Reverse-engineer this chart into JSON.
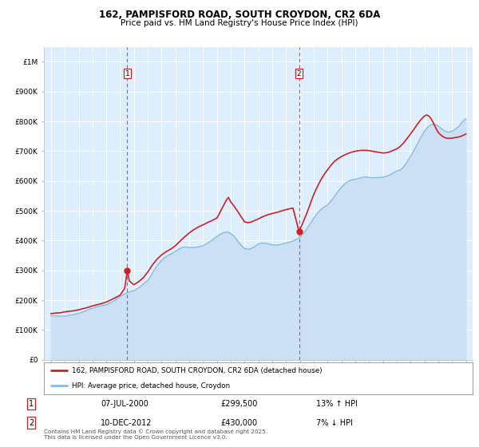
{
  "title1": "162, PAMPISFORD ROAD, SOUTH CROYDON, CR2 6DA",
  "title2": "Price paid vs. HM Land Registry's House Price Index (HPI)",
  "background_color": "#ffffff",
  "plot_bg_color": "#ddeeff",
  "hpi_fill_color": "#cce0f5",
  "hpi_line_color": "#88bbdd",
  "price_color": "#cc2222",
  "marker_color": "#cc2222",
  "vline_color": "#dd4444",
  "legend_label_price": "162, PAMPISFORD ROAD, SOUTH CROYDON, CR2 6DA (detached house)",
  "legend_label_hpi": "HPI: Average price, detached house, Croydon",
  "annotation1_date": "07-JUL-2000",
  "annotation1_price": "£299,500",
  "annotation1_pct": "13% ↑ HPI",
  "annotation1_year": 2000.52,
  "annotation1_value": 299500,
  "annotation2_date": "10-DEC-2012",
  "annotation2_price": "£430,000",
  "annotation2_pct": "7% ↓ HPI",
  "annotation2_year": 2012.94,
  "annotation2_value": 430000,
  "footer": "Contains HM Land Registry data © Crown copyright and database right 2025.\nThis data is licensed under the Open Government Licence v3.0.",
  "ylim": [
    0,
    1050000
  ],
  "xlim": [
    1994.5,
    2025.5
  ],
  "yticks": [
    0,
    100000,
    200000,
    300000,
    400000,
    500000,
    600000,
    700000,
    800000,
    900000,
    1000000
  ],
  "ytick_labels": [
    "£0",
    "£100K",
    "£200K",
    "£300K",
    "£400K",
    "£500K",
    "£600K",
    "£700K",
    "£800K",
    "£900K",
    "£1M"
  ],
  "hpi_data": [
    [
      1995,
      148000
    ],
    [
      1995.25,
      147500
    ],
    [
      1995.5,
      147000
    ],
    [
      1995.75,
      146500
    ],
    [
      1996,
      147000
    ],
    [
      1996.25,
      149000
    ],
    [
      1996.5,
      151000
    ],
    [
      1996.75,
      153000
    ],
    [
      1997,
      156000
    ],
    [
      1997.25,
      160000
    ],
    [
      1997.5,
      164000
    ],
    [
      1997.75,
      169000
    ],
    [
      1998,
      173000
    ],
    [
      1998.25,
      177000
    ],
    [
      1998.5,
      180000
    ],
    [
      1998.75,
      182000
    ],
    [
      1999,
      185000
    ],
    [
      1999.25,
      190000
    ],
    [
      1999.5,
      196000
    ],
    [
      1999.75,
      204000
    ],
    [
      2000,
      212000
    ],
    [
      2000.25,
      219000
    ],
    [
      2000.5,
      225000
    ],
    [
      2000.75,
      229000
    ],
    [
      2001,
      232000
    ],
    [
      2001.25,
      239000
    ],
    [
      2001.5,
      247000
    ],
    [
      2001.75,
      257000
    ],
    [
      2002,
      267000
    ],
    [
      2002.25,
      284000
    ],
    [
      2002.5,
      304000
    ],
    [
      2002.75,
      321000
    ],
    [
      2003,
      334000
    ],
    [
      2003.25,
      344000
    ],
    [
      2003.5,
      351000
    ],
    [
      2003.75,
      357000
    ],
    [
      2004,
      364000
    ],
    [
      2004.25,
      372000
    ],
    [
      2004.5,
      377000
    ],
    [
      2004.75,
      379000
    ],
    [
      2005,
      377000
    ],
    [
      2005.25,
      377000
    ],
    [
      2005.5,
      378000
    ],
    [
      2005.75,
      380000
    ],
    [
      2006,
      383000
    ],
    [
      2006.25,
      389000
    ],
    [
      2006.5,
      397000
    ],
    [
      2006.75,
      405000
    ],
    [
      2007,
      414000
    ],
    [
      2007.25,
      422000
    ],
    [
      2007.5,
      427000
    ],
    [
      2007.75,
      429000
    ],
    [
      2008,
      424000
    ],
    [
      2008.25,
      414000
    ],
    [
      2008.5,
      399000
    ],
    [
      2008.75,
      384000
    ],
    [
      2009,
      374000
    ],
    [
      2009.25,
      371000
    ],
    [
      2009.5,
      374000
    ],
    [
      2009.75,
      381000
    ],
    [
      2010,
      389000
    ],
    [
      2010.25,
      392000
    ],
    [
      2010.5,
      391000
    ],
    [
      2010.75,
      389000
    ],
    [
      2011,
      386000
    ],
    [
      2011.25,
      385000
    ],
    [
      2011.5,
      386000
    ],
    [
      2011.75,
      389000
    ],
    [
      2012,
      392000
    ],
    [
      2012.25,
      395000
    ],
    [
      2012.5,
      399000
    ],
    [
      2012.75,
      404000
    ],
    [
      2013,
      412000
    ],
    [
      2013.25,
      424000
    ],
    [
      2013.5,
      439000
    ],
    [
      2013.75,
      457000
    ],
    [
      2014,
      475000
    ],
    [
      2014.25,
      491000
    ],
    [
      2014.5,
      504000
    ],
    [
      2014.75,
      513000
    ],
    [
      2015,
      520000
    ],
    [
      2015.25,
      533000
    ],
    [
      2015.5,
      548000
    ],
    [
      2015.75,
      565000
    ],
    [
      2016,
      579000
    ],
    [
      2016.25,
      591000
    ],
    [
      2016.5,
      599000
    ],
    [
      2016.75,
      604000
    ],
    [
      2017,
      606000
    ],
    [
      2017.25,
      609000
    ],
    [
      2017.5,
      612000
    ],
    [
      2017.75,
      614000
    ],
    [
      2018,
      612000
    ],
    [
      2018.25,
      611000
    ],
    [
      2018.5,
      611000
    ],
    [
      2018.75,
      612000
    ],
    [
      2019,
      613000
    ],
    [
      2019.25,
      616000
    ],
    [
      2019.5,
      620000
    ],
    [
      2019.75,
      627000
    ],
    [
      2020,
      634000
    ],
    [
      2020.25,
      637000
    ],
    [
      2020.5,
      647000
    ],
    [
      2020.75,
      664000
    ],
    [
      2021,
      682000
    ],
    [
      2021.25,
      703000
    ],
    [
      2021.5,
      725000
    ],
    [
      2021.75,
      747000
    ],
    [
      2022,
      767000
    ],
    [
      2022.25,
      781000
    ],
    [
      2022.5,
      789000
    ],
    [
      2022.75,
      791000
    ],
    [
      2023,
      785000
    ],
    [
      2023.25,
      775000
    ],
    [
      2023.5,
      767000
    ],
    [
      2023.75,
      764000
    ],
    [
      2024,
      767000
    ],
    [
      2024.25,
      774000
    ],
    [
      2024.5,
      784000
    ],
    [
      2024.75,
      799000
    ],
    [
      2025,
      809000
    ]
  ],
  "price_data": [
    [
      1995,
      155000
    ],
    [
      1995.33,
      157000
    ],
    [
      1995.67,
      158000
    ],
    [
      1996,
      161000
    ],
    [
      1996.33,
      163000
    ],
    [
      1996.67,
      165000
    ],
    [
      1997,
      168000
    ],
    [
      1997.33,
      172000
    ],
    [
      1997.67,
      176000
    ],
    [
      1998,
      181000
    ],
    [
      1998.33,
      185000
    ],
    [
      1998.67,
      189000
    ],
    [
      1999,
      194000
    ],
    [
      1999.33,
      201000
    ],
    [
      1999.67,
      209000
    ],
    [
      2000,
      217000
    ],
    [
      2000.33,
      240000
    ],
    [
      2000.52,
      299500
    ],
    [
      2000.67,
      265000
    ],
    [
      2000.83,
      258000
    ],
    [
      2001,
      252000
    ],
    [
      2001.33,
      262000
    ],
    [
      2001.67,
      275000
    ],
    [
      2002,
      295000
    ],
    [
      2002.33,
      318000
    ],
    [
      2002.67,
      338000
    ],
    [
      2003,
      352000
    ],
    [
      2003.33,
      363000
    ],
    [
      2003.67,
      372000
    ],
    [
      2004,
      383000
    ],
    [
      2004.33,
      398000
    ],
    [
      2004.67,
      413000
    ],
    [
      2005,
      426000
    ],
    [
      2005.33,
      437000
    ],
    [
      2005.67,
      446000
    ],
    [
      2006,
      453000
    ],
    [
      2006.33,
      461000
    ],
    [
      2006.67,
      468000
    ],
    [
      2007,
      476000
    ],
    [
      2007.17,
      490000
    ],
    [
      2007.33,
      505000
    ],
    [
      2007.5,
      520000
    ],
    [
      2007.67,
      535000
    ],
    [
      2007.83,
      545000
    ],
    [
      2008,
      530000
    ],
    [
      2008.25,
      515000
    ],
    [
      2008.5,
      498000
    ],
    [
      2008.75,
      480000
    ],
    [
      2009,
      463000
    ],
    [
      2009.25,
      460000
    ],
    [
      2009.5,
      463000
    ],
    [
      2009.75,
      468000
    ],
    [
      2010,
      473000
    ],
    [
      2010.25,
      479000
    ],
    [
      2010.5,
      484000
    ],
    [
      2010.75,
      488000
    ],
    [
      2011,
      491000
    ],
    [
      2011.25,
      494000
    ],
    [
      2011.5,
      497000
    ],
    [
      2011.75,
      501000
    ],
    [
      2012,
      504000
    ],
    [
      2012.25,
      507000
    ],
    [
      2012.5,
      509000
    ],
    [
      2012.94,
      430000
    ],
    [
      2013,
      438000
    ],
    [
      2013.17,
      455000
    ],
    [
      2013.33,
      473000
    ],
    [
      2013.5,
      492000
    ],
    [
      2013.67,
      513000
    ],
    [
      2013.83,
      534000
    ],
    [
      2014,
      555000
    ],
    [
      2014.25,
      580000
    ],
    [
      2014.5,
      603000
    ],
    [
      2014.75,
      622000
    ],
    [
      2015,
      638000
    ],
    [
      2015.25,
      653000
    ],
    [
      2015.5,
      666000
    ],
    [
      2015.75,
      675000
    ],
    [
      2016,
      682000
    ],
    [
      2016.25,
      688000
    ],
    [
      2016.5,
      693000
    ],
    [
      2016.75,
      697000
    ],
    [
      2017,
      700000
    ],
    [
      2017.25,
      702000
    ],
    [
      2017.5,
      703000
    ],
    [
      2017.75,
      703000
    ],
    [
      2018,
      702000
    ],
    [
      2018.25,
      700000
    ],
    [
      2018.5,
      698000
    ],
    [
      2018.75,
      696000
    ],
    [
      2019,
      694000
    ],
    [
      2019.25,
      695000
    ],
    [
      2019.5,
      698000
    ],
    [
      2019.75,
      703000
    ],
    [
      2020,
      708000
    ],
    [
      2020.25,
      716000
    ],
    [
      2020.5,
      728000
    ],
    [
      2020.75,
      743000
    ],
    [
      2021,
      758000
    ],
    [
      2021.25,
      774000
    ],
    [
      2021.5,
      791000
    ],
    [
      2021.75,
      806000
    ],
    [
      2022,
      818000
    ],
    [
      2022.17,
      822000
    ],
    [
      2022.33,
      818000
    ],
    [
      2022.5,
      808000
    ],
    [
      2022.67,
      793000
    ],
    [
      2022.83,
      778000
    ],
    [
      2023,
      763000
    ],
    [
      2023.25,
      752000
    ],
    [
      2023.5,
      745000
    ],
    [
      2023.75,
      743000
    ],
    [
      2024,
      744000
    ],
    [
      2024.25,
      746000
    ],
    [
      2024.5,
      748000
    ],
    [
      2024.75,
      752000
    ],
    [
      2025,
      758000
    ]
  ]
}
